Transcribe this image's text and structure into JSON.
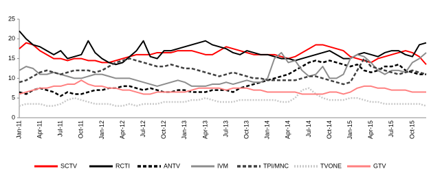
{
  "chart_data": {
    "type": "line",
    "categories": [
      "Jan-11",
      null,
      null,
      "Apr-11",
      null,
      null,
      "Jul-11",
      null,
      null,
      "Oct-11",
      null,
      null,
      "Jan-12",
      null,
      null,
      "Apr-12",
      null,
      null,
      "Jul-12",
      null,
      null,
      "Oct-12",
      null,
      null,
      "Jan-13",
      null,
      null,
      "Apr-13",
      null,
      null,
      "Jul-13",
      null,
      null,
      "Oct-13",
      null,
      null,
      "Jan-14",
      null,
      null,
      "Apr-14",
      null,
      null,
      "Jul-14",
      null,
      null,
      "Oct-14",
      null,
      null,
      "Jan-15",
      null,
      null,
      "Apr-15",
      null,
      null,
      "Jul-15",
      null,
      null,
      "Oct-15",
      null,
      null
    ],
    "ylim": [
      0,
      25
    ],
    "yticks": [
      0,
      5,
      10,
      15,
      20,
      25
    ],
    "grid": false,
    "legend": "bottom",
    "series": [
      {
        "name": "SCTV",
        "color": "#ff0000",
        "line_style": "solid",
        "values": [
          17.5,
          19,
          18.5,
          17,
          16,
          15,
          15,
          14.5,
          15,
          15,
          14.5,
          14.5,
          14,
          14,
          14.5,
          15,
          15.5,
          16,
          16,
          16,
          16.5,
          16.5,
          16.5,
          17,
          17,
          17,
          16.5,
          16,
          16,
          17,
          18,
          17.5,
          17,
          16.5,
          16,
          16,
          16,
          16,
          15.5,
          15,
          15.5,
          16.5,
          17.5,
          18.5,
          18.5,
          18,
          17.5,
          17,
          15.5,
          15,
          14.5,
          14,
          15,
          15.5,
          16,
          16.5,
          17,
          16.5,
          15.5,
          13.5
        ]
      },
      {
        "name": "RCTI",
        "color": "#000000",
        "line_style": "solid",
        "values": [
          22,
          20,
          18.5,
          18,
          17,
          16,
          17,
          15,
          15.5,
          16,
          19.5,
          16.5,
          15,
          14,
          13.5,
          14,
          15.5,
          17,
          19.5,
          15.5,
          15,
          17,
          17,
          17.5,
          18,
          18.5,
          19,
          19.5,
          18.5,
          18,
          17.5,
          16.5,
          16,
          17,
          16.5,
          16,
          16,
          15.5,
          15,
          15,
          14.5,
          15,
          15.5,
          16,
          16.5,
          17,
          16,
          15,
          15,
          16,
          16.5,
          16,
          15.5,
          16.5,
          17,
          17,
          16,
          15.5,
          18.5,
          19
        ]
      },
      {
        "name": "ANTV",
        "color": "#000000",
        "line_style": "dashed",
        "values": [
          6.5,
          6,
          7,
          7.5,
          7,
          6.5,
          5.5,
          6.5,
          6,
          6,
          6.5,
          7,
          7,
          7.5,
          7.5,
          8,
          8,
          7.5,
          7,
          7.5,
          7,
          6.5,
          6.5,
          7,
          7,
          6.5,
          6.5,
          6.5,
          7,
          7,
          7,
          6.5,
          7.5,
          8,
          8.5,
          9,
          9.5,
          10,
          10.5,
          11,
          12,
          13,
          14,
          14.5,
          14,
          14.5,
          14,
          13.5,
          13,
          13.5,
          12,
          11.5,
          12,
          13,
          13,
          13.5,
          12,
          11.5,
          11,
          11
        ]
      },
      {
        "name": "IVM",
        "color": "#8c8c8c",
        "line_style": "solid",
        "values": [
          12,
          13,
          12.5,
          11,
          11,
          11.5,
          11,
          10.5,
          10,
          10,
          10.5,
          11,
          11,
          10.5,
          10,
          10,
          10,
          9.5,
          9,
          8.5,
          8,
          8.5,
          9,
          9.5,
          9,
          8,
          8,
          8,
          8.5,
          8.5,
          9,
          8.5,
          9,
          9.5,
          9,
          9,
          10,
          15,
          16.5,
          14,
          14.5,
          12,
          10.5,
          11,
          13,
          10,
          10,
          11,
          15,
          16,
          15.5,
          14,
          12,
          11,
          12,
          12,
          11.5,
          14,
          15,
          16.5
        ]
      },
      {
        "name": "TPI/MNC",
        "color": "#404040",
        "line_style": "dashed",
        "values": [
          9,
          9.5,
          10.5,
          11.5,
          12,
          11.5,
          11,
          11.5,
          12,
          12,
          12,
          11.5,
          12,
          13,
          14,
          14.5,
          15,
          14.5,
          14,
          13.5,
          13,
          13,
          13.5,
          13,
          12.5,
          12.5,
          12,
          11.5,
          11,
          10.5,
          11,
          11.5,
          11,
          10.5,
          10,
          10,
          9.5,
          9.5,
          9.5,
          9.5,
          9.5,
          10,
          10.5,
          10.5,
          10,
          9.5,
          9,
          8.5,
          9,
          12,
          15,
          13,
          12.5,
          12,
          11.5,
          11,
          11.5,
          12,
          11.5,
          11
        ]
      },
      {
        "name": "TVONE",
        "color": "#c8c8c8",
        "line_style": "dotted",
        "values": [
          3,
          3.5,
          3.5,
          3.5,
          3,
          3,
          3.5,
          4.5,
          5,
          4.5,
          4,
          3.5,
          3.5,
          3.5,
          3,
          3,
          3.5,
          3,
          3.5,
          3.5,
          3.5,
          4,
          4,
          4,
          4,
          4.5,
          4.5,
          5,
          4.5,
          4,
          4,
          4,
          4.5,
          4.5,
          4.5,
          4.5,
          4.5,
          4.5,
          4,
          4,
          5,
          7,
          7.5,
          6,
          5,
          4.5,
          4.5,
          4.5,
          5,
          5,
          4.5,
          4,
          4,
          3.5,
          3.5,
          3.5,
          3.5,
          3.5,
          3.5,
          3
        ]
      },
      {
        "name": "GTV",
        "color": "#ff8080",
        "line_style": "solid",
        "values": [
          6,
          6.5,
          7,
          7.5,
          7.5,
          8,
          8,
          8.5,
          8.5,
          9.5,
          8.5,
          8,
          8,
          7.5,
          7.5,
          7,
          7,
          6.5,
          6,
          6,
          6.5,
          6.5,
          6.5,
          6.5,
          6.5,
          7,
          7.5,
          7.5,
          7.5,
          7.5,
          7,
          7.5,
          7.5,
          7.5,
          7,
          7,
          6.5,
          6.5,
          6.5,
          6.5,
          6.5,
          6,
          6,
          6,
          6,
          6.5,
          6.5,
          6,
          6.5,
          7.5,
          8,
          8,
          7.5,
          7.5,
          7,
          7,
          7,
          6.5,
          6.5,
          6.5
        ]
      }
    ]
  }
}
